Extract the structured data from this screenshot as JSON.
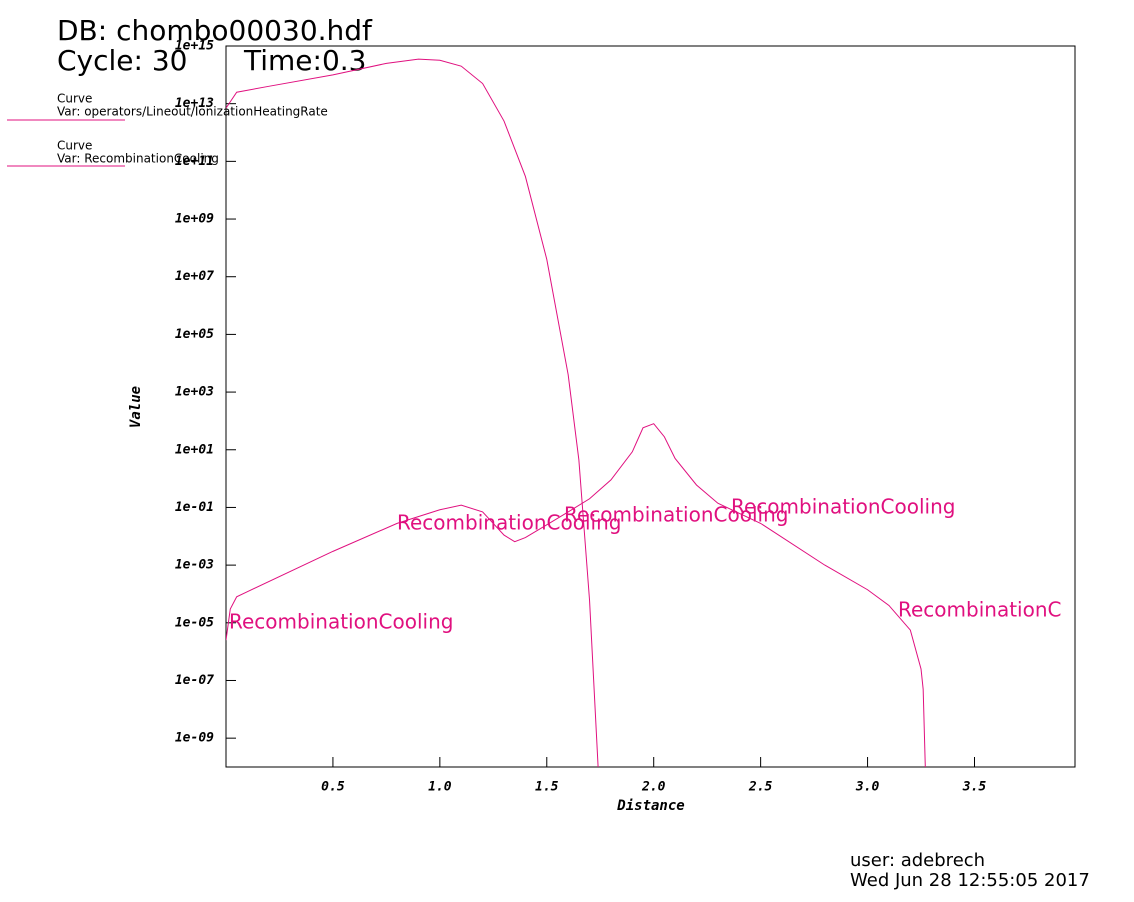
{
  "header": {
    "database": "DB: chombo00030.hdf",
    "cycle": "Cycle: 30",
    "time": "Time:0.3"
  },
  "footer": {
    "user": "user: adebrech",
    "date": "Wed Jun 28 12:55:05 2017"
  },
  "legend_title": "Curve",
  "chart_data": {
    "type": "line",
    "x_label": "Distance",
    "y_label": "Value",
    "xlim": [
      0,
      3.97
    ],
    "ylim": [
      1e-10,
      1000000000000000.0
    ],
    "log_y": true,
    "xticks": [
      0.5,
      {
        "value": 1,
        "label": "1.0"
      },
      1.5,
      {
        "value": 2,
        "label": "2.0"
      },
      2.5,
      {
        "value": 3,
        "label": "3.0"
      },
      3.5
    ],
    "yticks": [
      {
        "value": 1e-09,
        "label": "1e-09"
      },
      {
        "value": 1e-07,
        "label": "1e-07"
      },
      {
        "value": 1e-05,
        "label": "1e-05"
      },
      {
        "value": 0.001,
        "label": "1e-03"
      },
      {
        "value": 0.1,
        "label": "1e-01"
      },
      {
        "value": 10,
        "label": "1e+01"
      },
      {
        "value": 1000,
        "label": "1e+03"
      },
      {
        "value": 100000,
        "label": "1e+05"
      },
      {
        "value": 10000000.0,
        "label": "1e+07"
      },
      {
        "value": 1000000000.0,
        "label": "1e+09"
      },
      {
        "value": 100000000000.0,
        "label": "1e+11"
      },
      {
        "value": 10000000000000.0,
        "label": "1e+13"
      },
      {
        "value": 1000000000000000.0,
        "label": "1e+15"
      }
    ],
    "series": [
      {
        "name": "Var: operators/Lineout/IonizationHeatingRate",
        "color": "#e0107f",
        "x": [
          0,
          0.05,
          0.2,
          0.5,
          0.75,
          0.9,
          1.0,
          1.1,
          1.2,
          1.3,
          1.4,
          1.5,
          1.6,
          1.65,
          1.7,
          1.74
        ],
        "values": [
          7000000000000.0,
          25000000000000.0,
          40000000000000.0,
          100000000000000.0,
          250000000000000.0,
          350000000000000.0,
          320000000000000.0,
          200000000000000.0,
          50000000000000.0,
          2500000000000.0,
          30000000000.0,
          40000000.0,
          4000,
          4.5,
          6e-05,
          1e-10
        ]
      },
      {
        "name": "Var: RecombinationCooling",
        "color": "#e0107f",
        "x": [
          0,
          0.02,
          0.05,
          0.1,
          0.5,
          0.8,
          1.0,
          1.1,
          1.2,
          1.3,
          1.35,
          1.4,
          1.5,
          1.6,
          1.7,
          1.8,
          1.9,
          1.95,
          2.0,
          2.05,
          2.1,
          2.2,
          2.3,
          2.5,
          2.8,
          3.0,
          3.1,
          3.2,
          3.25,
          3.26,
          3.27
        ],
        "values": [
          2.5e-06,
          3e-05,
          8e-05,
          0.00012,
          0.003,
          0.028,
          0.083,
          0.12,
          0.07,
          0.011,
          0.0065,
          0.009,
          0.025,
          0.07,
          0.2,
          0.9,
          8.5,
          58,
          80,
          28,
          5,
          0.6,
          0.14,
          0.028,
          0.001,
          0.00014,
          4e-05,
          5.6e-06,
          2.5e-07,
          5e-08,
          1e-10
        ]
      }
    ],
    "annotations": [
      "RecombinationCooling",
      "RecombinationCooling",
      "RecombinationCooling",
      "RecombinationCooling",
      "RecombinationC"
    ]
  }
}
